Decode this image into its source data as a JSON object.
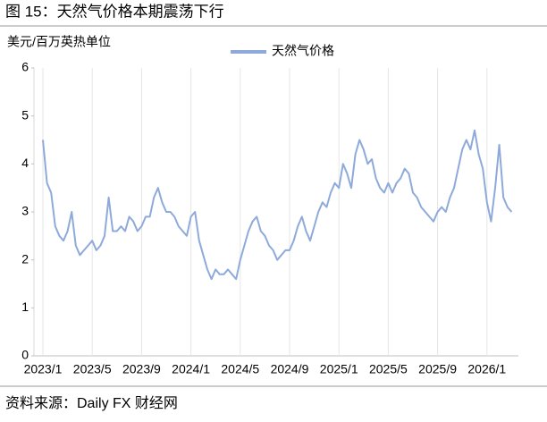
{
  "chart_data": {
    "type": "line",
    "title": "图 15：天然气价格本期震荡下行",
    "y_label": "美元/百万英热单位",
    "source": "资料来源：Daily FX 财经网",
    "categories": [
      "2023/1",
      null,
      null,
      null,
      null,
      null,
      null,
      null,
      null,
      null,
      null,
      null,
      "2023/5",
      null,
      null,
      null,
      null,
      null,
      null,
      null,
      null,
      null,
      null,
      null,
      "2023/9",
      null,
      null,
      null,
      null,
      null,
      null,
      null,
      null,
      null,
      null,
      null,
      "2024/1",
      null,
      null,
      null,
      null,
      null,
      null,
      null,
      null,
      null,
      null,
      null,
      "2024/5",
      null,
      null,
      null,
      null,
      null,
      null,
      null,
      null,
      null,
      null,
      null,
      "2024/9",
      null,
      null,
      null,
      null,
      null,
      null,
      null,
      null,
      null,
      null,
      null,
      "2025/1",
      null,
      null,
      null,
      null,
      null,
      null,
      null,
      null,
      null,
      null,
      null,
      "2025/5",
      null,
      null,
      null,
      null,
      null,
      null,
      null,
      null,
      null,
      null,
      null,
      "2025/9",
      null,
      null,
      null,
      null,
      null,
      null,
      null,
      null,
      null,
      null,
      null,
      "2026/1",
      null,
      null,
      null,
      null,
      null,
      null
    ],
    "series": [
      {
        "name": "天然气价格",
        "color": "#8eaadb",
        "values": [
          4.5,
          3.6,
          3.4,
          2.7,
          2.5,
          2.4,
          2.6,
          3.0,
          2.3,
          2.1,
          2.2,
          2.3,
          2.4,
          2.2,
          2.3,
          2.5,
          3.3,
          2.6,
          2.6,
          2.7,
          2.6,
          2.9,
          2.8,
          2.6,
          2.7,
          2.9,
          2.9,
          3.3,
          3.5,
          3.2,
          3.0,
          3.0,
          2.9,
          2.7,
          2.6,
          2.5,
          2.9,
          3.0,
          2.4,
          2.1,
          1.8,
          1.6,
          1.8,
          1.7,
          1.7,
          1.8,
          1.7,
          1.6,
          2.0,
          2.3,
          2.6,
          2.8,
          2.9,
          2.6,
          2.5,
          2.3,
          2.2,
          2.0,
          2.1,
          2.2,
          2.2,
          2.4,
          2.7,
          2.9,
          2.6,
          2.4,
          2.7,
          3.0,
          3.2,
          3.1,
          3.4,
          3.6,
          3.5,
          4.0,
          3.8,
          3.5,
          4.2,
          4.5,
          4.3,
          4.0,
          4.1,
          3.7,
          3.5,
          3.4,
          3.6,
          3.4,
          3.6,
          3.7,
          3.9,
          3.8,
          3.4,
          3.3,
          3.1,
          3.0,
          2.9,
          2.8,
          3.0,
          3.1,
          3.0,
          3.3,
          3.5,
          3.9,
          4.3,
          4.5,
          4.3,
          4.7,
          4.2,
          3.9,
          3.2,
          2.8,
          3.5,
          4.4,
          3.3,
          3.1,
          3.0
        ]
      }
    ],
    "ylim": [
      0,
      6
    ],
    "yticks": [
      0,
      1,
      2,
      3,
      4,
      5,
      6
    ],
    "legend": "top"
  }
}
